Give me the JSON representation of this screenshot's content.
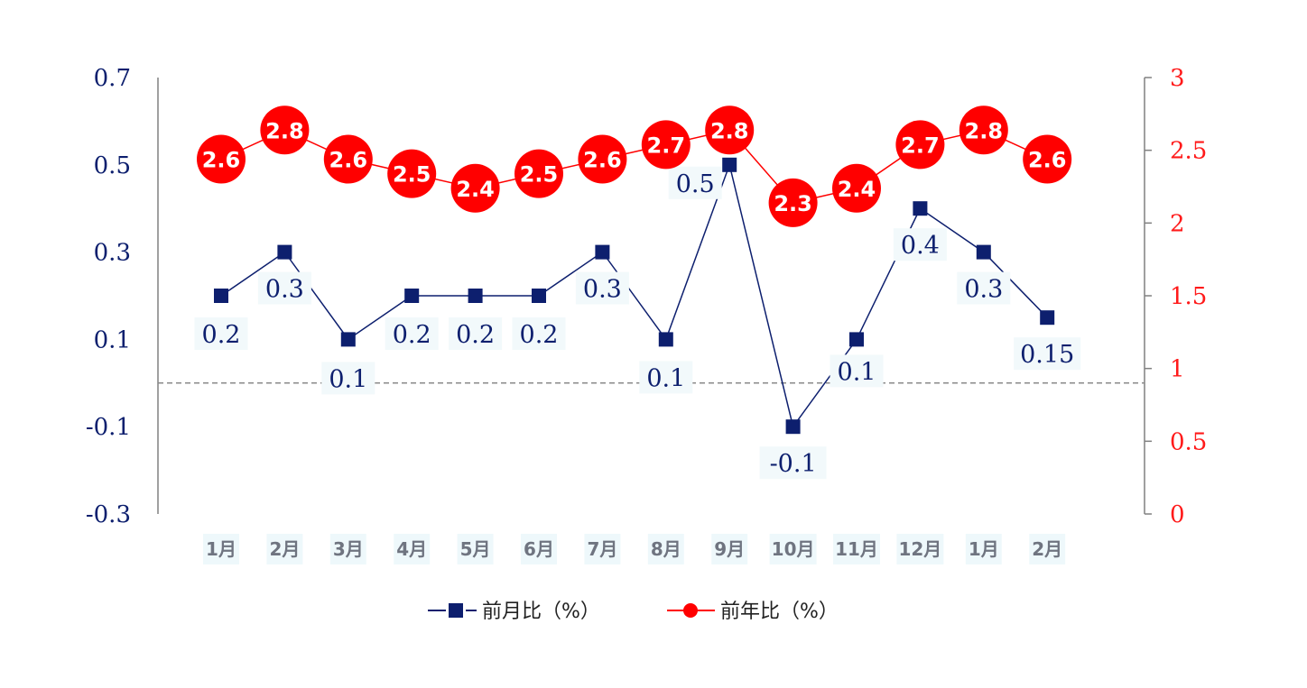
{
  "chart_data": {
    "type": "line",
    "categories": [
      "1月",
      "2月",
      "3月",
      "4月",
      "5月",
      "6月",
      "7月",
      "8月",
      "9月",
      "10月",
      "11月",
      "12月",
      "1月",
      "2月"
    ],
    "series": [
      {
        "name": "前月比（%）",
        "axis": "left",
        "color": "#0d1f6e",
        "marker": "square",
        "values": [
          0.2,
          0.3,
          0.1,
          0.2,
          0.2,
          0.2,
          0.3,
          0.1,
          0.5,
          -0.1,
          0.1,
          0.4,
          0.3,
          0.15
        ],
        "labels": [
          "0.2",
          "0.3",
          "0.1",
          "0.2",
          "0.2",
          "0.2",
          "0.3",
          "0.1",
          "0.5",
          "-0.1",
          "0.1",
          "0.4",
          "0.3",
          "0.15"
        ]
      },
      {
        "name": "前年比（%）",
        "axis": "right",
        "color": "#ff0000",
        "marker": "circle",
        "values": [
          2.6,
          2.8,
          2.6,
          2.5,
          2.4,
          2.5,
          2.6,
          2.7,
          2.8,
          2.3,
          2.4,
          2.7,
          2.8,
          2.6
        ],
        "labels": [
          "2.6",
          "2.8",
          "2.6",
          "2.5",
          "2.4",
          "2.5",
          "2.6",
          "2.7",
          "2.8",
          "2.3",
          "2.4",
          "2.7",
          "2.8",
          "2.6"
        ]
      }
    ],
    "left_axis": {
      "ylim": [
        -0.3,
        0.7
      ],
      "ticks": [
        "0.7",
        "0.5",
        "0.3",
        "0.1",
        "-0.1",
        "-0.3"
      ],
      "tick_values": [
        0.7,
        0.5,
        0.3,
        0.1,
        -0.1,
        -0.3
      ],
      "color": "#0d1f6e"
    },
    "right_axis": {
      "ylim": [
        0,
        3
      ],
      "ticks": [
        "3",
        "2.5",
        "2",
        "1.5",
        "1",
        "0.5",
        "0"
      ],
      "tick_values": [
        3,
        2.5,
        2,
        1.5,
        1,
        0.5,
        0
      ],
      "color": "#ff1a1a"
    },
    "reference_line": {
      "value": 0,
      "axis": "left",
      "style": "dashed"
    },
    "legend": {
      "position": "bottom-center",
      "items": [
        "前月比（%）",
        "前年比（%）"
      ]
    },
    "grid": false
  }
}
